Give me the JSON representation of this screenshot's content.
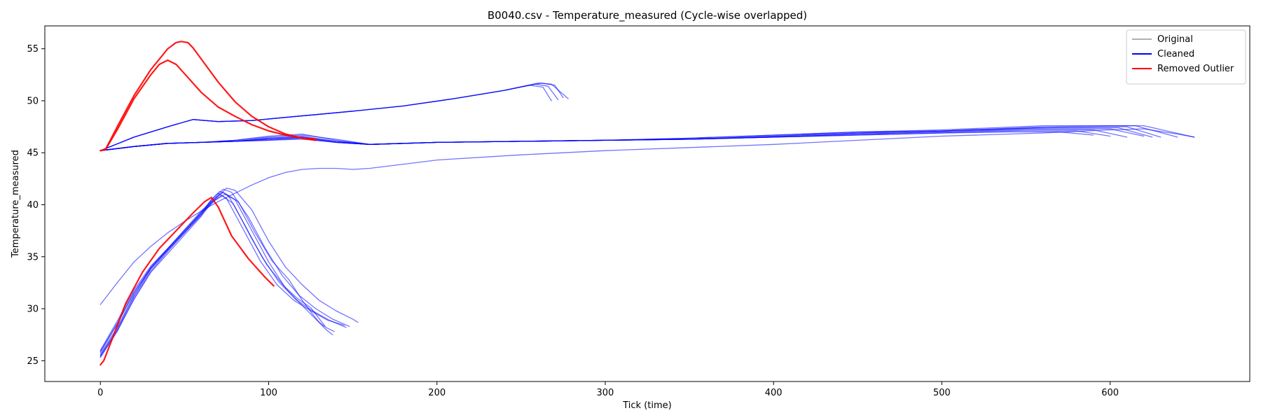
{
  "chart_data": {
    "type": "line",
    "title": "B0040.csv - Temperature_measured (Cycle-wise overlapped)",
    "xlabel": "Tick (time)",
    "ylabel": "Temperature_measured",
    "xlim": [
      -33,
      683
    ],
    "ylim": [
      23.0,
      57.2
    ],
    "xticks": [
      0,
      100,
      200,
      300,
      400,
      500,
      600
    ],
    "yticks": [
      25,
      30,
      35,
      40,
      45,
      50,
      55
    ],
    "grid": false,
    "legend": {
      "placement": "top-right",
      "entries": [
        {
          "label": "Original",
          "color": "#b0b0b0"
        },
        {
          "label": "Cleaned",
          "color": "#0000ff"
        },
        {
          "label": "Removed Outlier",
          "color": "#ff0000"
        }
      ]
    },
    "series": [
      {
        "group": "cleaned",
        "x": [
          0,
          20,
          40,
          55,
          70,
          90,
          110,
          130,
          150,
          180,
          210,
          240,
          260,
          268,
          278
        ],
        "y": [
          45.2,
          46.5,
          47.5,
          48.2,
          48.0,
          48.1,
          48.4,
          48.7,
          49.0,
          49.5,
          50.2,
          51.0,
          51.7,
          51.6,
          50.2
        ]
      },
      {
        "group": "cleaned",
        "x": [
          0,
          20,
          40,
          55,
          70,
          90,
          110,
          130,
          150,
          180,
          210,
          240,
          262,
          270,
          275
        ],
        "y": [
          45.2,
          46.5,
          47.5,
          48.2,
          48.0,
          48.1,
          48.4,
          48.7,
          49.0,
          49.5,
          50.2,
          51.0,
          51.7,
          51.5,
          50.3
        ]
      },
      {
        "group": "cleaned",
        "x": [
          0,
          20,
          40,
          55,
          70,
          90,
          110,
          130,
          150,
          180,
          210,
          240,
          258,
          266,
          272
        ],
        "y": [
          45.2,
          46.5,
          47.5,
          48.2,
          48.0,
          48.1,
          48.4,
          48.7,
          49.0,
          49.5,
          50.2,
          51.0,
          51.6,
          51.4,
          50.1
        ]
      },
      {
        "group": "cleaned",
        "x": [
          0,
          20,
          40,
          55,
          70,
          90,
          110,
          130,
          150,
          180,
          210,
          240,
          255,
          263,
          268
        ],
        "y": [
          45.2,
          46.5,
          47.5,
          48.2,
          48.0,
          48.1,
          48.4,
          48.7,
          49.0,
          49.5,
          50.2,
          51.0,
          51.5,
          51.3,
          50.0
        ]
      },
      {
        "group": "cleaned",
        "x": [
          0,
          20,
          40,
          60,
          80,
          100,
          120,
          140,
          160,
          200,
          250,
          300,
          350,
          400,
          450,
          500,
          560,
          600,
          620,
          650
        ],
        "y": [
          45.2,
          45.6,
          45.9,
          46.0,
          46.2,
          46.5,
          46.7,
          46.3,
          45.8,
          46.0,
          46.1,
          46.2,
          46.4,
          46.7,
          47.0,
          47.1,
          47.5,
          47.6,
          47.6,
          46.5
        ]
      },
      {
        "group": "cleaned",
        "x": [
          0,
          20,
          40,
          60,
          80,
          100,
          120,
          140,
          160,
          200,
          250,
          300,
          350,
          400,
          450,
          500,
          560,
          600,
          615,
          640
        ],
        "y": [
          45.2,
          45.6,
          45.9,
          46.0,
          46.2,
          46.6,
          46.8,
          46.2,
          45.8,
          46.0,
          46.1,
          46.2,
          46.4,
          46.7,
          47.0,
          47.2,
          47.6,
          47.6,
          47.6,
          46.5
        ]
      },
      {
        "group": "cleaned",
        "x": [
          0,
          20,
          40,
          60,
          80,
          100,
          120,
          140,
          160,
          200,
          250,
          300,
          350,
          400,
          450,
          500,
          560,
          595,
          610,
          630
        ],
        "y": [
          45.2,
          45.6,
          45.9,
          46.0,
          46.1,
          46.4,
          46.6,
          46.1,
          45.8,
          46.0,
          46.1,
          46.2,
          46.3,
          46.6,
          46.9,
          47.1,
          47.4,
          47.5,
          47.5,
          46.5
        ]
      },
      {
        "group": "cleaned",
        "x": [
          0,
          20,
          40,
          60,
          80,
          100,
          120,
          140,
          160,
          200,
          250,
          300,
          350,
          400,
          450,
          500,
          555,
          590,
          605,
          625
        ],
        "y": [
          45.2,
          45.6,
          45.9,
          46.0,
          46.1,
          46.4,
          46.5,
          46.1,
          45.8,
          46.0,
          46.1,
          46.2,
          46.3,
          46.6,
          46.9,
          47.1,
          47.4,
          47.4,
          47.4,
          46.5
        ]
      },
      {
        "group": "cleaned",
        "x": [
          0,
          20,
          40,
          60,
          80,
          100,
          120,
          140,
          160,
          200,
          250,
          300,
          350,
          400,
          450,
          500,
          550,
          580,
          600,
          620
        ],
        "y": [
          45.2,
          45.6,
          45.9,
          46.0,
          46.1,
          46.3,
          46.5,
          46.0,
          45.8,
          46.0,
          46.1,
          46.2,
          46.3,
          46.5,
          46.8,
          47.0,
          47.3,
          47.3,
          47.3,
          46.6
        ]
      },
      {
        "group": "cleaned",
        "x": [
          0,
          20,
          40,
          60,
          80,
          100,
          120,
          140,
          160,
          200,
          250,
          300,
          350,
          400,
          450,
          500,
          550,
          575,
          590,
          610
        ],
        "y": [
          45.2,
          45.6,
          45.9,
          46.0,
          46.1,
          46.3,
          46.4,
          46.0,
          45.8,
          46.0,
          46.1,
          46.2,
          46.3,
          46.5,
          46.8,
          47.0,
          47.2,
          47.2,
          47.2,
          46.5
        ]
      },
      {
        "group": "cleaned",
        "x": [
          0,
          20,
          40,
          60,
          80,
          100,
          120,
          140,
          160,
          200,
          250,
          300,
          350,
          400,
          450,
          500,
          545,
          570,
          580,
          600
        ],
        "y": [
          45.2,
          45.6,
          45.9,
          46.0,
          46.1,
          46.2,
          46.4,
          46.0,
          45.8,
          46.0,
          46.1,
          46.2,
          46.3,
          46.5,
          46.7,
          46.9,
          47.1,
          47.1,
          47.1,
          46.6
        ]
      },
      {
        "group": "cleaned",
        "x": [
          0,
          20,
          40,
          60,
          80,
          100,
          120,
          140,
          160,
          200,
          250,
          300,
          350,
          400,
          450,
          500,
          540,
          560,
          570,
          590
        ],
        "y": [
          45.2,
          45.6,
          45.9,
          46.0,
          46.1,
          46.2,
          46.3,
          46.0,
          45.8,
          46.0,
          46.1,
          46.2,
          46.3,
          46.5,
          46.7,
          46.9,
          47.0,
          47.0,
          47.0,
          46.7
        ]
      },
      {
        "group": "cleaned",
        "x": [
          0,
          10,
          20,
          30,
          40,
          50,
          60,
          70,
          80,
          90,
          100,
          110,
          120,
          130,
          140,
          150,
          160,
          180,
          200,
          250,
          300,
          350,
          400,
          450,
          500,
          560,
          600,
          620,
          640,
          650
        ],
        "y": [
          30.4,
          32.5,
          34.5,
          36.0,
          37.3,
          38.4,
          39.4,
          40.3,
          41.1,
          41.9,
          42.6,
          43.1,
          43.4,
          43.5,
          43.5,
          43.4,
          43.5,
          43.9,
          44.3,
          44.8,
          45.2,
          45.5,
          45.8,
          46.2,
          46.6,
          46.9,
          47.2,
          47.3,
          46.8,
          46.5
        ]
      },
      {
        "group": "cleaned",
        "x": [
          0,
          10,
          20,
          30,
          40,
          50,
          60,
          68,
          75,
          80,
          90,
          100,
          110,
          120,
          130,
          140,
          150,
          153
        ],
        "y": [
          25.8,
          28.5,
          31.5,
          34.0,
          35.8,
          37.5,
          39.3,
          40.5,
          41.6,
          41.4,
          39.5,
          36.5,
          34.0,
          32.3,
          30.8,
          29.8,
          29.0,
          28.7
        ]
      },
      {
        "group": "cleaned",
        "x": [
          0,
          10,
          20,
          30,
          40,
          50,
          60,
          68,
          73,
          78,
          88,
          98,
          108,
          118,
          128,
          138,
          148
        ],
        "y": [
          25.5,
          28.0,
          31.3,
          33.9,
          35.7,
          37.4,
          39.2,
          40.6,
          41.5,
          41.2,
          38.8,
          35.8,
          33.2,
          31.3,
          30.0,
          29.0,
          28.3
        ]
      },
      {
        "group": "cleaned",
        "x": [
          0,
          10,
          20,
          30,
          40,
          50,
          60,
          66,
          71,
          76,
          86,
          96,
          106,
          116,
          126,
          136,
          146
        ],
        "y": [
          25.3,
          27.8,
          31.0,
          33.6,
          35.5,
          37.3,
          39.0,
          40.5,
          41.3,
          40.9,
          38.0,
          35.0,
          32.6,
          30.9,
          29.8,
          28.9,
          28.2
        ]
      },
      {
        "group": "cleaned",
        "x": [
          0,
          10,
          20,
          30,
          40,
          50,
          60,
          65,
          70,
          75,
          85,
          95,
          105,
          115,
          125,
          135,
          145
        ],
        "y": [
          25.9,
          28.6,
          31.6,
          33.9,
          35.7,
          37.5,
          39.2,
          40.3,
          41.1,
          40.6,
          37.6,
          34.6,
          32.3,
          30.8,
          29.8,
          28.9,
          28.4
        ]
      },
      {
        "group": "cleaned",
        "x": [
          0,
          10,
          20,
          30,
          40,
          50,
          60,
          67,
          73,
          80,
          90,
          100,
          110,
          120,
          128,
          134,
          138
        ],
        "y": [
          26.0,
          28.8,
          31.8,
          34.1,
          35.8,
          37.6,
          39.4,
          40.5,
          41.2,
          40.5,
          37.5,
          34.5,
          32.0,
          30.3,
          29.0,
          28.0,
          27.5
        ]
      },
      {
        "group": "cleaned",
        "x": [
          0,
          10,
          20,
          30,
          40,
          50,
          60,
          68,
          74,
          82,
          92,
          102,
          112,
          120,
          126,
          130,
          133
        ],
        "y": [
          25.6,
          28.2,
          31.2,
          33.8,
          35.6,
          37.3,
          39.1,
          40.4,
          41.0,
          40.3,
          37.3,
          34.6,
          32.8,
          30.8,
          29.5,
          28.7,
          28.3
        ]
      },
      {
        "group": "cleaned",
        "x": [
          0,
          10,
          20,
          30,
          40,
          50,
          60,
          66,
          72,
          79,
          89,
          99,
          109,
          117,
          125,
          134,
          139
        ],
        "y": [
          25.4,
          27.9,
          30.9,
          33.5,
          35.3,
          37.1,
          38.9,
          40.2,
          40.9,
          40.1,
          37.0,
          34.2,
          32.2,
          31.0,
          30.1,
          28.2,
          27.8
        ]
      },
      {
        "group": "removed",
        "x": [
          0,
          3,
          10,
          20,
          30,
          40,
          45,
          48,
          52,
          55,
          60,
          70,
          80,
          90,
          100,
          110,
          120,
          128
        ],
        "y": [
          45.2,
          45.3,
          47.5,
          50.5,
          53.0,
          55.0,
          55.6,
          55.7,
          55.6,
          55.1,
          54.0,
          51.8,
          49.9,
          48.5,
          47.5,
          46.8,
          46.4,
          46.3
        ]
      },
      {
        "group": "removed",
        "x": [
          0,
          3,
          10,
          20,
          30,
          35,
          40,
          45,
          50,
          60,
          70,
          80,
          90,
          100,
          110,
          120,
          128
        ],
        "y": [
          45.2,
          45.3,
          47.2,
          50.2,
          52.5,
          53.5,
          53.9,
          53.5,
          52.6,
          50.8,
          49.4,
          48.5,
          47.7,
          47.1,
          46.7,
          46.4,
          46.2
        ]
      },
      {
        "group": "removed",
        "x": [
          0,
          2,
          8,
          15,
          25,
          35,
          45,
          55,
          62,
          66,
          70,
          78,
          88,
          98,
          103
        ],
        "y": [
          24.6,
          25.0,
          27.5,
          30.5,
          33.5,
          35.8,
          37.5,
          39.2,
          40.3,
          40.7,
          39.8,
          37.0,
          34.8,
          33.0,
          32.2
        ]
      }
    ]
  }
}
